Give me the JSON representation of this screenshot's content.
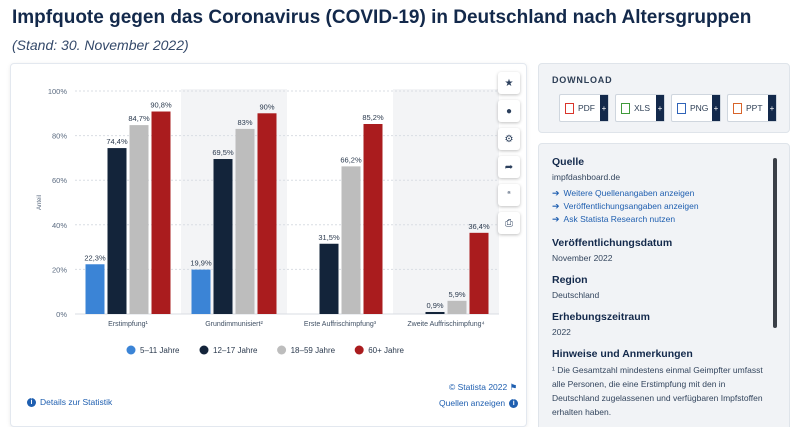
{
  "page": {
    "title": "Impfquote gegen das Coronavirus (COVID-19) in Deutschland nach Altersgruppen",
    "subtitle": "(Stand: 30. November 2022)"
  },
  "chart_data": {
    "type": "bar",
    "categories": [
      "Erstimpfung¹",
      "Grundimmunisiert²",
      "Erste Auffrischimpfung³",
      "Zweite Auffrischimpfung⁴"
    ],
    "ylabel": "Anteil",
    "ylim": [
      0,
      100
    ],
    "yticks": [
      "0%",
      "20%",
      "40%",
      "60%",
      "80%",
      "100%"
    ],
    "grid": true,
    "legend_position": "bottom",
    "series": [
      {
        "name": "5–11 Jahre",
        "color": "#3b84d6",
        "values": [
          22.3,
          19.9,
          null,
          null
        ],
        "labels": [
          "22,3%",
          "19,9%",
          "",
          ""
        ]
      },
      {
        "name": "12–17 Jahre",
        "color": "#13243a",
        "values": [
          74.4,
          69.5,
          31.5,
          0.9
        ],
        "labels": [
          "74,4%",
          "69,5%",
          "31,5%",
          "0,9%"
        ]
      },
      {
        "name": "18–59 Jahre",
        "color": "#bdbdbd",
        "values": [
          84.7,
          83,
          66.2,
          5.9
        ],
        "labels": [
          "84,7%",
          "83%",
          "66,2%",
          "5,9%"
        ]
      },
      {
        "name": "60+ Jahre",
        "color": "#aa1c1e",
        "values": [
          90.8,
          90,
          85.2,
          36.4
        ],
        "labels": [
          "90,8%",
          "90%",
          "85,2%",
          "36,4%"
        ]
      }
    ]
  },
  "chart_footer": {
    "copyright": "© Statista 2022",
    "details_link": "Details zur Statistik",
    "sources_link": "Quellen anzeigen"
  },
  "toolbar": {
    "icons": [
      "star-icon",
      "bell-icon",
      "gear-icon",
      "share-icon",
      "quote-icon",
      "print-icon"
    ]
  },
  "download": {
    "title": "DOWNLOAD",
    "buttons": [
      {
        "label": "PDF",
        "color": "#d9352b"
      },
      {
        "label": "XLS",
        "color": "#3f9a3a"
      },
      {
        "label": "PNG",
        "color": "#2f63b8"
      },
      {
        "label": "PPT",
        "color": "#d8642a"
      }
    ]
  },
  "info": {
    "source_heading": "Quelle",
    "source_value": "impfdashboard.de",
    "source_links": [
      "Weitere Quellenangaben anzeigen",
      "Veröffentlichungsangaben anzeigen",
      "Ask Statista Research nutzen"
    ],
    "published_heading": "Veröffentlichungsdatum",
    "published_value": "November 2022",
    "region_heading": "Region",
    "region_value": "Deutschland",
    "period_heading": "Erhebungszeitraum",
    "period_value": "2022",
    "notes_heading": "Hinweise und Anmerkungen",
    "notes_text": "¹ Die Gesamtzahl mindestens einmal Geimpfter umfasst alle Personen, die eine Erstimpfung mit den in Deutschland zugelassenen und verfügbaren Impfstoffen erhalten haben."
  }
}
